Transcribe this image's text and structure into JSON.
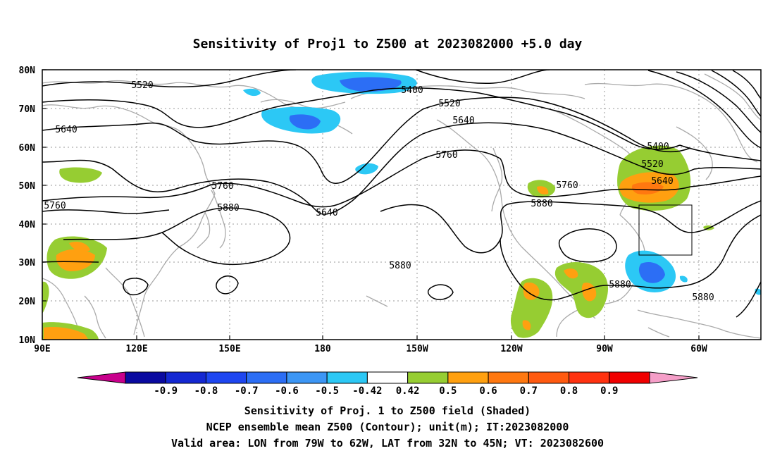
{
  "title": "Sensitivity of Proj1 to Z500 at 2023082000 +5.0 day",
  "lat_ticks": [
    "80N",
    "70N",
    "60N",
    "50N",
    "40N",
    "30N",
    "20N",
    "10N"
  ],
  "lon_ticks": [
    "90E",
    "120E",
    "150E",
    "180",
    "150W",
    "120W",
    "90W",
    "60W"
  ],
  "contour_labels": [
    "5520",
    "5640",
    "5760",
    "5400",
    "5520",
    "5640",
    "5760",
    "5880",
    "5640",
    "5400",
    "5520",
    "5640",
    "5760",
    "5880",
    "5880",
    "5880",
    "5880",
    "5760"
  ],
  "colorbar": {
    "labels": [
      "-0.9",
      "-0.8",
      "-0.7",
      "-0.6",
      "-0.5",
      "-0.42",
      "0.42",
      "0.5",
      "0.6",
      "0.7",
      "0.8",
      "0.9"
    ],
    "colors": [
      "#c8008c",
      "#0a0aa0",
      "#1428d2",
      "#1e46f0",
      "#2c6ef5",
      "#3c96f5",
      "#2cc8f5",
      "#ffffff",
      "#96cd32",
      "#ffa010",
      "#ff7810",
      "#ff5a10",
      "#ff3210",
      "#f00000",
      "#f59ec8"
    ]
  },
  "footer": {
    "line1": "Sensitivity of Proj. 1 to Z500 field (Shaded)",
    "line2": "NCEP ensemble mean Z500 (Contour); unit(m); IT:2023082000",
    "line3": "Valid area: LON from 79W to 62W, LAT from 32N to 45N; VT: 2023082600"
  }
}
